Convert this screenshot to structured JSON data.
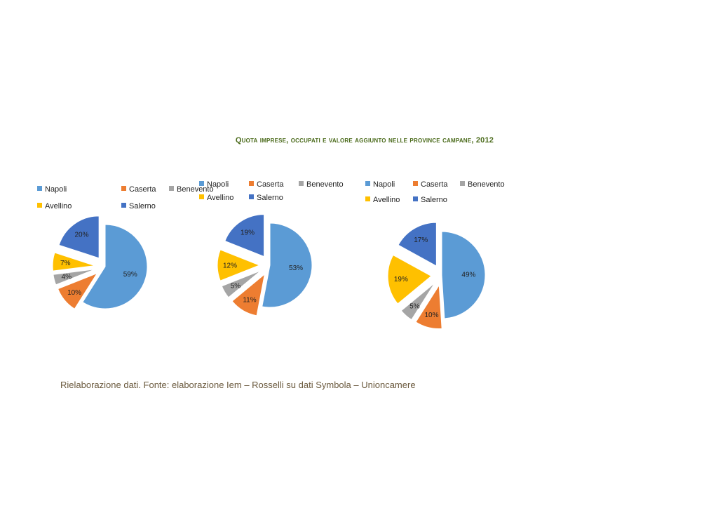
{
  "title": "Quota imprese, occupati e valore aggiunto nelle province campane, 2012",
  "source": "Rielaborazione dati. Fonte: elaborazione Iem – Rosselli su dati Symbola – Unioncamere",
  "colors": {
    "Napoli": "#5b9bd5",
    "Caserta": "#ed7d31",
    "Benevento": "#a5a5a5",
    "Avellino": "#ffc000",
    "Salerno": "#4472c4"
  },
  "chart_data": [
    {
      "type": "pie",
      "categories": [
        "Napoli",
        "Caserta",
        "Benevento",
        "Avellino",
        "Salerno"
      ],
      "values": [
        59,
        10,
        4,
        7,
        20
      ],
      "labels": [
        "59%",
        "10%",
        "4%",
        "7%",
        "20%"
      ],
      "legend": "top"
    },
    {
      "type": "pie",
      "categories": [
        "Napoli",
        "Caserta",
        "Benevento",
        "Avellino",
        "Salerno"
      ],
      "values": [
        53,
        11,
        5,
        12,
        19
      ],
      "labels": [
        "53%",
        "11%",
        "5%",
        "12%",
        "19%"
      ],
      "legend": "top"
    },
    {
      "type": "pie",
      "categories": [
        "Napoli",
        "Caserta",
        "Benevento",
        "Avellino",
        "Salerno"
      ],
      "values": [
        49,
        10,
        5,
        19,
        17
      ],
      "labels": [
        "49%",
        "10%",
        "5%",
        "19%",
        "17%"
      ],
      "legend": "top"
    }
  ]
}
